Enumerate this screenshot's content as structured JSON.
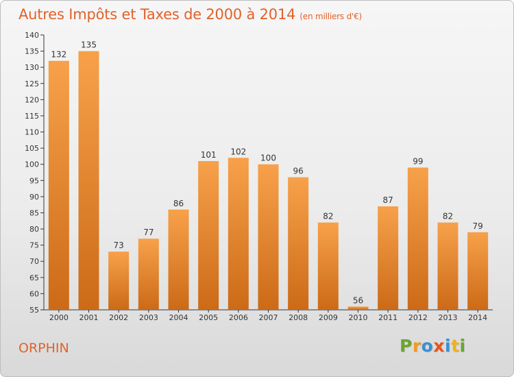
{
  "title": "Autres Impôts et Taxes de 2000 à 2014",
  "title_unit": "(en milliers d'€)",
  "commune": "ORPHIN",
  "logo": {
    "letters": [
      "P",
      "r",
      "o",
      "x",
      "i",
      "t",
      "i"
    ]
  },
  "colors": {
    "title": "#e0622a",
    "bar_top": "#f7a14a",
    "bar_bottom": "#cc6a17",
    "logo": [
      "#6aa52f",
      "#f09b1f",
      "#3b8fd1",
      "#e8541b",
      "#3b8fd1",
      "#f2b21c",
      "#6aa52f"
    ]
  },
  "chart_data": {
    "type": "bar",
    "title": "Autres Impôts et Taxes de 2000 à 2014",
    "categories": [
      "2000",
      "2001",
      "2002",
      "2003",
      "2004",
      "2005",
      "2006",
      "2007",
      "2008",
      "2009",
      "2010",
      "2011",
      "2012",
      "2013",
      "2014"
    ],
    "values": [
      132,
      135,
      73,
      77,
      86,
      101,
      102,
      100,
      96,
      82,
      56,
      87,
      99,
      82,
      79
    ],
    "ylim": [
      55,
      140
    ],
    "yticks": [
      55,
      60,
      65,
      70,
      75,
      80,
      85,
      90,
      95,
      100,
      105,
      110,
      115,
      120,
      125,
      130,
      135,
      140
    ],
    "grid": false,
    "data_labels": true
  }
}
